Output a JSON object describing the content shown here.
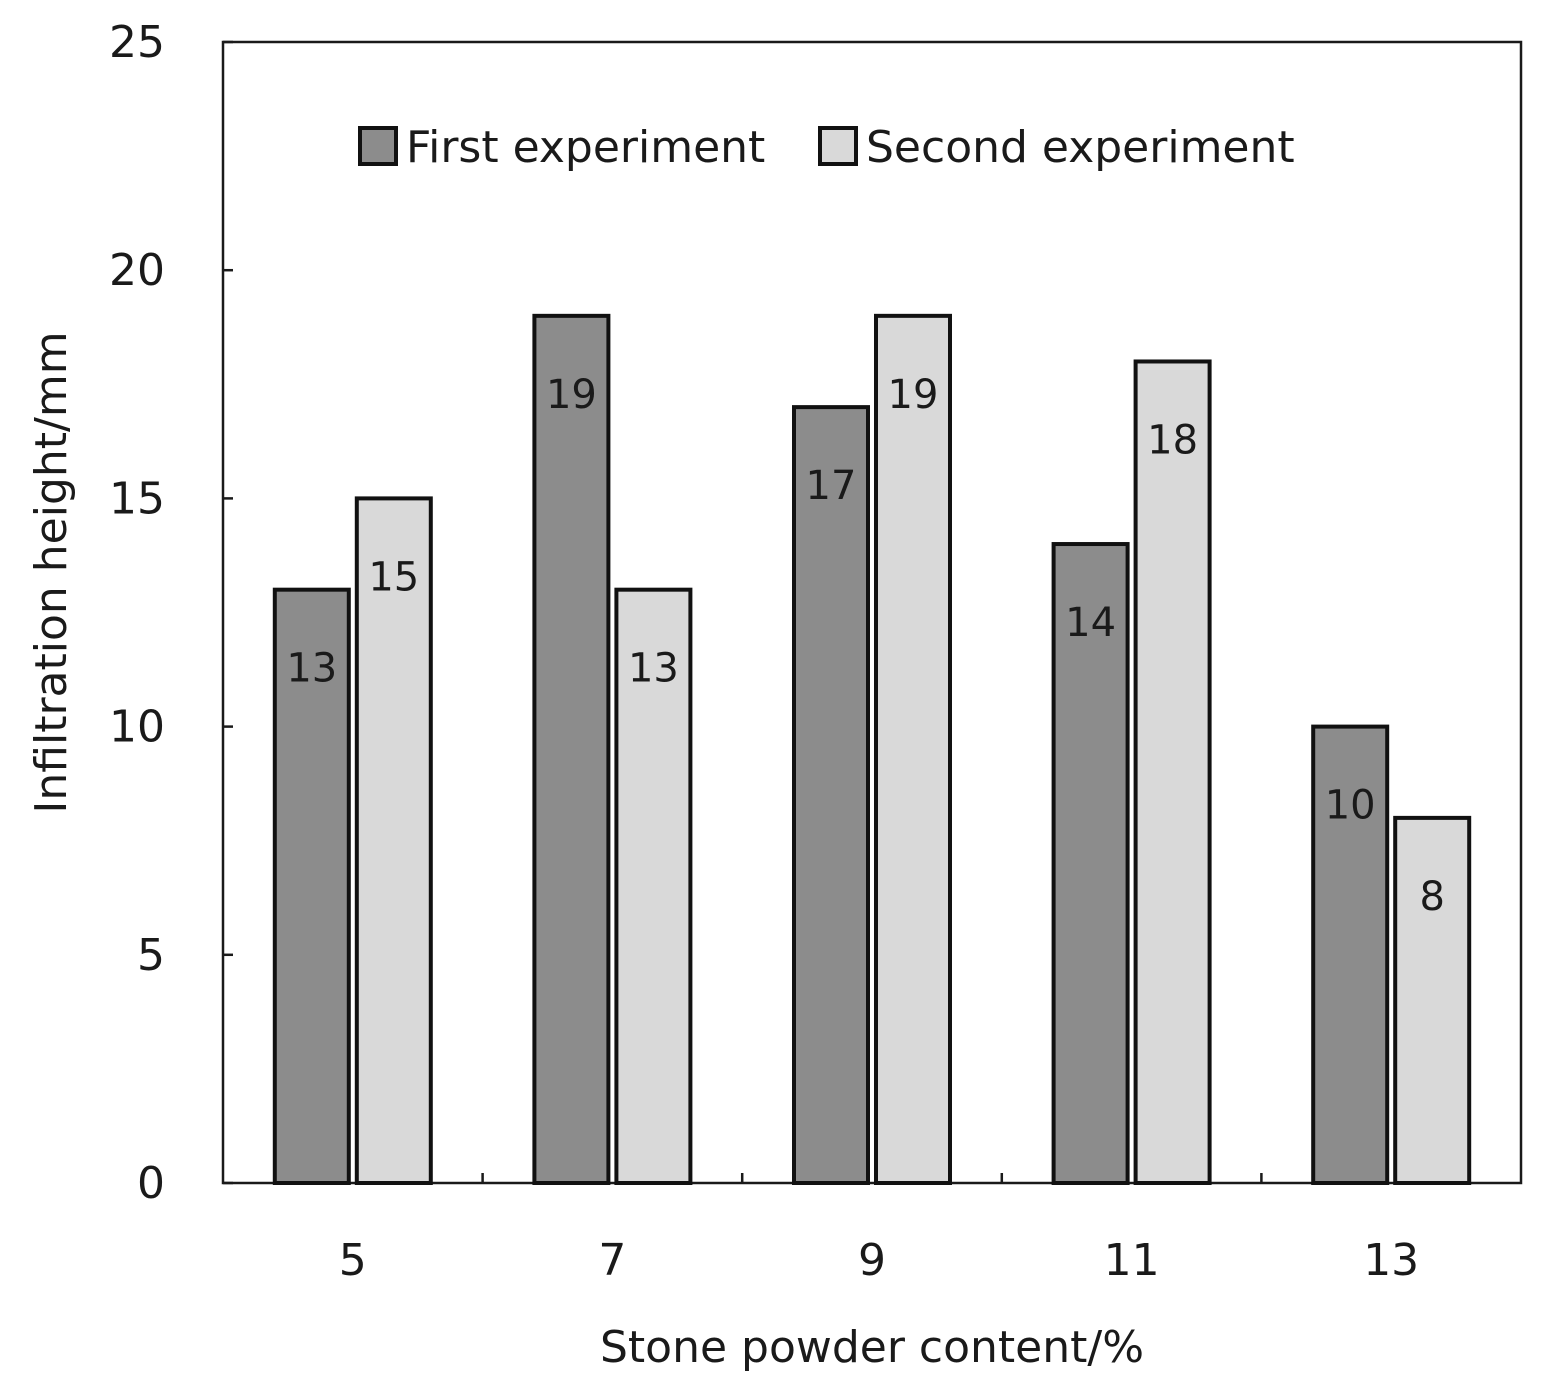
{
  "chart_data": {
    "type": "bar",
    "title": "",
    "xlabel": "Stone powder content/%",
    "ylabel": "Infiltration height/mm",
    "categories": [
      "5",
      "7",
      "9",
      "11",
      "13"
    ],
    "series": [
      {
        "name": "First experiment",
        "values": [
          13,
          19,
          17,
          14,
          10
        ],
        "color": "#8c8c8c"
      },
      {
        "name": "Second experiment",
        "values": [
          15,
          13,
          19,
          18,
          8
        ],
        "color": "#d9d9d9"
      }
    ],
    "ylim": [
      0,
      25
    ],
    "yticks": [
      "0",
      "5",
      "10",
      "15",
      "20",
      "25"
    ],
    "grid": false,
    "legend_position": "top-center"
  }
}
